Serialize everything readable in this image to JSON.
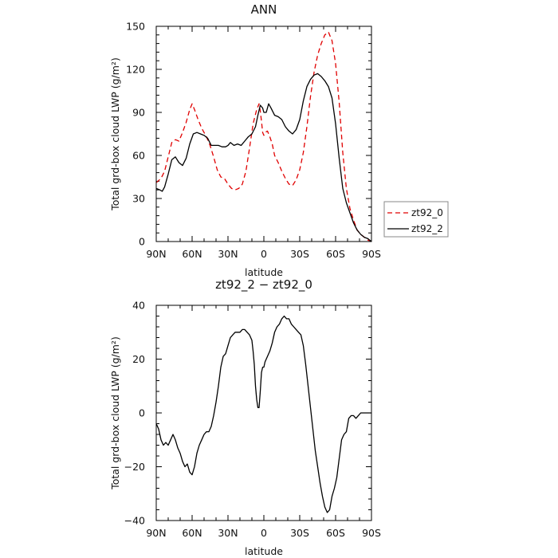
{
  "chart_data": [
    {
      "type": "line",
      "title": "ANN",
      "xlabel": "latitude",
      "ylabel": "Total grd-box cloud LWP (g/m²)",
      "ylim": [
        0,
        150
      ],
      "yticks": [
        0,
        30,
        60,
        90,
        120,
        150
      ],
      "xlim": [
        90,
        -90
      ],
      "xticks": [
        90,
        60,
        30,
        0,
        -30,
        -60,
        -90
      ],
      "xtick_labels": [
        "90N",
        "60N",
        "30N",
        "0",
        "30S",
        "60S",
        "90S"
      ],
      "legend": "right-outside",
      "series": [
        {
          "name": "zt92_0",
          "color": "#e00000",
          "dash": "dashed",
          "x": [
            90,
            86,
            83,
            80,
            77,
            74,
            71,
            68,
            65,
            62,
            60,
            58,
            55,
            52,
            48,
            45,
            42,
            39,
            36,
            33,
            30,
            27,
            24,
            21,
            18,
            15,
            12,
            9,
            6,
            4,
            3,
            2,
            1,
            0,
            -1,
            -3,
            -5,
            -7,
            -9,
            -12,
            -15,
            -18,
            -21,
            -24,
            -27,
            -30,
            -33,
            -36,
            -39,
            -42,
            -45,
            -48,
            -51,
            -54,
            -57,
            -60,
            -63,
            -66,
            -69,
            -72,
            -75,
            -78,
            -81,
            -84,
            -87,
            -90
          ],
          "y": [
            41,
            44,
            49,
            59,
            69,
            71,
            70,
            76,
            83,
            92,
            96,
            92,
            85,
            79,
            73,
            67,
            59,
            50,
            45,
            44,
            40,
            37,
            36,
            37,
            40,
            49,
            65,
            82,
            92,
            96,
            91,
            84,
            76,
            74,
            76,
            77,
            73,
            68,
            60,
            55,
            49,
            44,
            40,
            39,
            43,
            50,
            62,
            80,
            101,
            118,
            130,
            138,
            144,
            146,
            140,
            124,
            97,
            62,
            37,
            23,
            15,
            8,
            5,
            3,
            1,
            0
          ]
        },
        {
          "name": "zt92_2",
          "color": "#000000",
          "dash": "solid",
          "x": [
            90,
            87,
            85,
            83,
            80,
            77,
            74,
            71,
            68,
            65,
            62,
            59,
            56,
            53,
            50,
            47,
            44,
            41,
            38,
            35,
            32,
            30,
            28,
            25,
            22,
            19,
            16,
            13,
            10,
            7,
            5,
            3,
            1,
            0,
            -2,
            -4,
            -6,
            -9,
            -12,
            -15,
            -18,
            -21,
            -24,
            -27,
            -30,
            -33,
            -36,
            -39,
            -42,
            -45,
            -48,
            -51,
            -54,
            -57,
            -60,
            -63,
            -66,
            -69,
            -72,
            -75,
            -78,
            -81,
            -84,
            -87,
            -90
          ],
          "y": [
            37,
            36,
            35,
            38,
            47,
            57,
            59,
            55,
            53,
            58,
            68,
            75,
            76,
            75,
            74,
            72,
            67,
            67,
            67,
            66,
            66,
            67,
            69,
            67,
            68,
            67,
            70,
            73,
            75,
            80,
            88,
            95,
            93,
            90,
            90,
            96,
            93,
            88,
            87,
            85,
            80,
            77,
            75,
            78,
            85,
            98,
            108,
            113,
            116,
            117,
            115,
            112,
            108,
            100,
            82,
            58,
            37,
            27,
            20,
            13,
            8,
            5,
            3,
            2,
            0
          ]
        }
      ]
    },
    {
      "type": "line",
      "title": "zt92_2 − zt92_0",
      "xlabel": "latitude",
      "ylabel": "Total grd-box cloud LWP (g/m²)",
      "ylim": [
        -40,
        40
      ],
      "yticks": [
        -40,
        -20,
        0,
        20,
        40
      ],
      "xlim": [
        90,
        -90
      ],
      "xticks": [
        90,
        60,
        30,
        0,
        -30,
        -60,
        -90
      ],
      "xtick_labels": [
        "90N",
        "60N",
        "30N",
        "0",
        "30S",
        "60S",
        "90S"
      ],
      "series": [
        {
          "color": "#000000",
          "dash": "solid",
          "x": [
            90,
            88,
            86,
            84,
            82,
            80,
            78,
            76,
            74,
            72,
            70,
            68,
            66,
            64,
            62,
            60,
            58,
            56,
            54,
            52,
            50,
            48,
            46,
            44,
            42,
            40,
            38,
            36,
            34,
            32,
            30,
            28,
            26,
            24,
            22,
            20,
            18,
            16,
            14,
            12,
            10,
            9,
            8,
            7,
            6,
            5,
            4,
            3,
            2,
            1,
            0,
            -1,
            -2,
            -3,
            -5,
            -7,
            -9,
            -11,
            -13,
            -15,
            -17,
            -19,
            -21,
            -23,
            -25,
            -27,
            -29,
            -31,
            -33,
            -35,
            -37,
            -39,
            -41,
            -43,
            -45,
            -47,
            -49,
            -51,
            -53,
            -55,
            -57,
            -59,
            -61,
            -63,
            -65,
            -67,
            -69,
            -71,
            -73,
            -75,
            -77,
            -79,
            -81,
            -83,
            -85,
            -87,
            -90
          ],
          "y": [
            -4,
            -6,
            -10,
            -12,
            -11,
            -12,
            -10,
            -8,
            -10,
            -13,
            -15,
            -18,
            -20,
            -19,
            -22,
            -23,
            -20,
            -15,
            -12,
            -10,
            -8,
            -7,
            -7,
            -5,
            -1,
            4,
            10,
            17,
            21,
            22,
            25,
            28,
            29,
            30,
            30,
            30,
            31,
            31,
            30,
            29,
            27,
            23,
            18,
            10,
            5,
            2,
            2,
            8,
            15,
            17,
            17,
            19,
            20,
            21,
            23,
            26,
            30,
            32,
            33,
            35,
            36,
            35,
            35,
            33,
            32,
            31,
            30,
            29,
            25,
            18,
            10,
            2,
            -6,
            -14,
            -20,
            -26,
            -31,
            -35,
            -37,
            -36,
            -31,
            -28,
            -24,
            -17,
            -10,
            -8,
            -7,
            -2,
            -1,
            -1,
            -2,
            -1,
            0,
            0,
            0,
            0,
            0
          ]
        }
      ]
    }
  ]
}
